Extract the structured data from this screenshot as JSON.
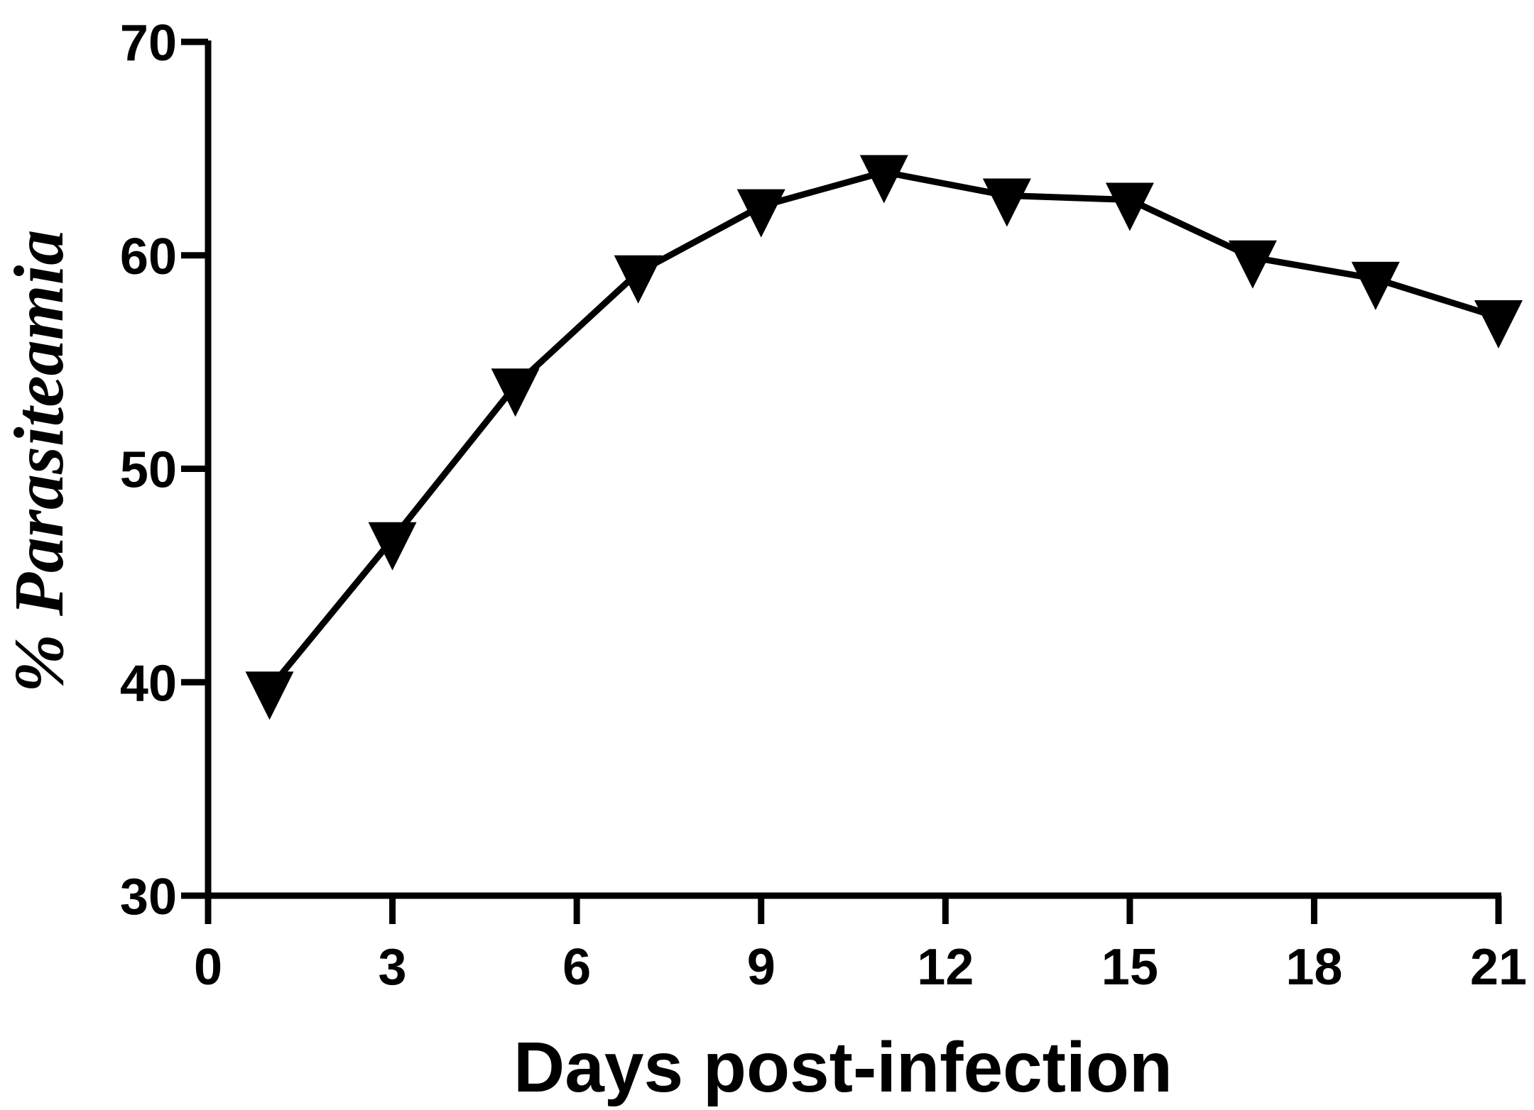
{
  "chart_data": {
    "type": "line",
    "title": "",
    "xlabel": "Days post-infection",
    "ylabel": "% Parasiteamia",
    "xlim": [
      0,
      21
    ],
    "ylim": [
      30,
      70
    ],
    "xticks": [
      "0",
      "3",
      "6",
      "9",
      "12",
      "15",
      "18",
      "21"
    ],
    "yticks": [
      "30",
      "40",
      "50",
      "60",
      "70"
    ],
    "grid": false,
    "legend": "none",
    "marker": "inverted-triangle",
    "line_color": "#000000",
    "series": [
      {
        "x": [
          1,
          3,
          5,
          7,
          9,
          11,
          13,
          15,
          17,
          19,
          21
        ],
        "y": [
          39.7,
          46.7,
          53.9,
          59.2,
          62.3,
          63.9,
          62.8,
          62.6,
          59.9,
          58.9,
          57.1
        ]
      }
    ]
  }
}
